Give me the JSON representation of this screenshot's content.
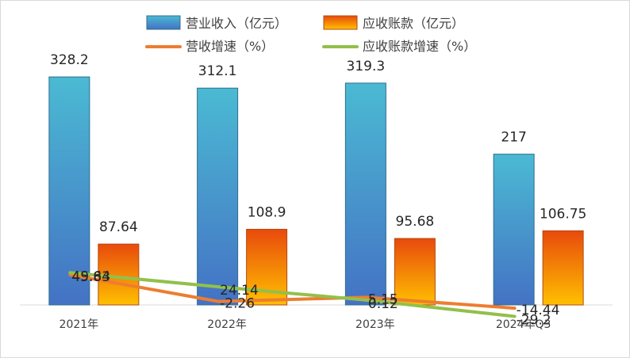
{
  "chart_data": {
    "type": "bar",
    "categories": [
      "2021年",
      "2022年",
      "2023年",
      "2024年Q3"
    ],
    "series": [
      {
        "name": "营业收入（亿元）",
        "kind": "bar",
        "axis": "left",
        "values": [
          328.2,
          312.1,
          319.3,
          217
        ],
        "labels": [
          "328.2",
          "312.1",
          "319.3",
          "217"
        ],
        "color_top": "#4bbad3",
        "color_bottom": "#4472c4"
      },
      {
        "name": "应收账款（亿元）",
        "kind": "bar",
        "axis": "left",
        "values": [
          87.64,
          108.9,
          95.68,
          106.75
        ],
        "labels": [
          "87.64",
          "108.9",
          "95.68",
          "106.75"
        ],
        "color_top": "#e84a0c",
        "color_bottom": "#ffc000"
      },
      {
        "name": "营收增速（%）",
        "kind": "line",
        "axis": "right",
        "values": [
          45.83,
          -2.26,
          5.15,
          -14.44
        ],
        "labels": [
          "45.83",
          "-2.26",
          "5.15",
          "-14.44"
        ],
        "color": "#ed7d31"
      },
      {
        "name": "应收账款增速（%）",
        "kind": "line",
        "axis": "right",
        "values": [
          49.64,
          24.14,
          0.12,
          -29.2
        ],
        "labels": [
          "49.64",
          "24.14",
          "0.12",
          "-29.2"
        ],
        "color": "#92c04b"
      }
    ],
    "ylim_left": [
      0,
      350
    ],
    "ylim_right": [
      -50,
      350
    ],
    "grid": false,
    "legend": "top"
  }
}
